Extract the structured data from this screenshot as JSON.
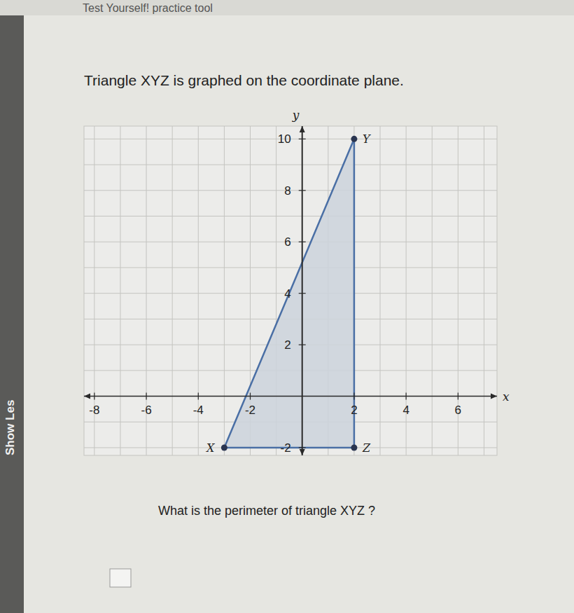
{
  "header": {
    "title": "Test Yourself! practice tool"
  },
  "side_tab": {
    "label": "Show Les"
  },
  "prompt": "Triangle XYZ is graphed on the coordinate plane.",
  "chart_data": {
    "type": "triangle",
    "x_label": "x",
    "y_label": "y",
    "xlim": [
      -8.4,
      7.5
    ],
    "ylim": [
      -2.3,
      10.5
    ],
    "xticks": [
      -8,
      -6,
      -4,
      -2,
      2,
      4,
      6
    ],
    "yticks": [
      -2,
      2,
      4,
      6,
      8,
      10
    ],
    "grid": true,
    "color": "#4a6fa5",
    "points": [
      {
        "name": "X",
        "x": -3,
        "y": -2
      },
      {
        "name": "Y",
        "x": 2,
        "y": 10
      },
      {
        "name": "Z",
        "x": 2,
        "y": -2
      }
    ]
  },
  "question": "What is the perimeter of triangle XYZ ?"
}
